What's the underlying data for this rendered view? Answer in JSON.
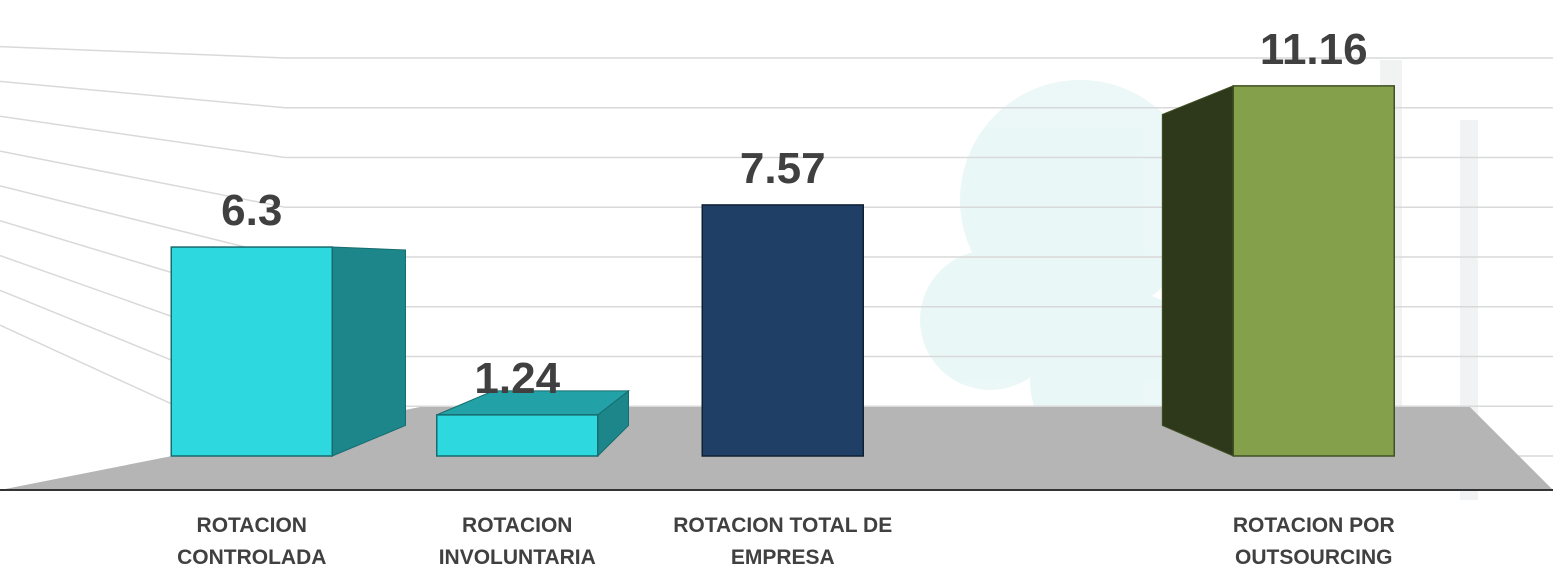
{
  "chart_data": {
    "type": "bar3d",
    "categories": [
      "ROTACION CONTROLADA",
      "ROTACION INVOLUNTARIA",
      "ROTACION TOTAL DE EMPRESA",
      null,
      "ROTACION POR OUTSOURCING"
    ],
    "values": [
      6.3,
      1.24,
      7.57,
      null,
      11.16
    ],
    "colors": [
      "#2dd8de",
      "#2dd8de",
      "#1f3f66",
      null,
      "#84a04a"
    ],
    "ylim": [
      0,
      12
    ],
    "yticks": [
      0,
      1.5,
      3,
      4.5,
      6,
      7.5,
      9,
      10.5,
      12
    ],
    "grid": true
  }
}
